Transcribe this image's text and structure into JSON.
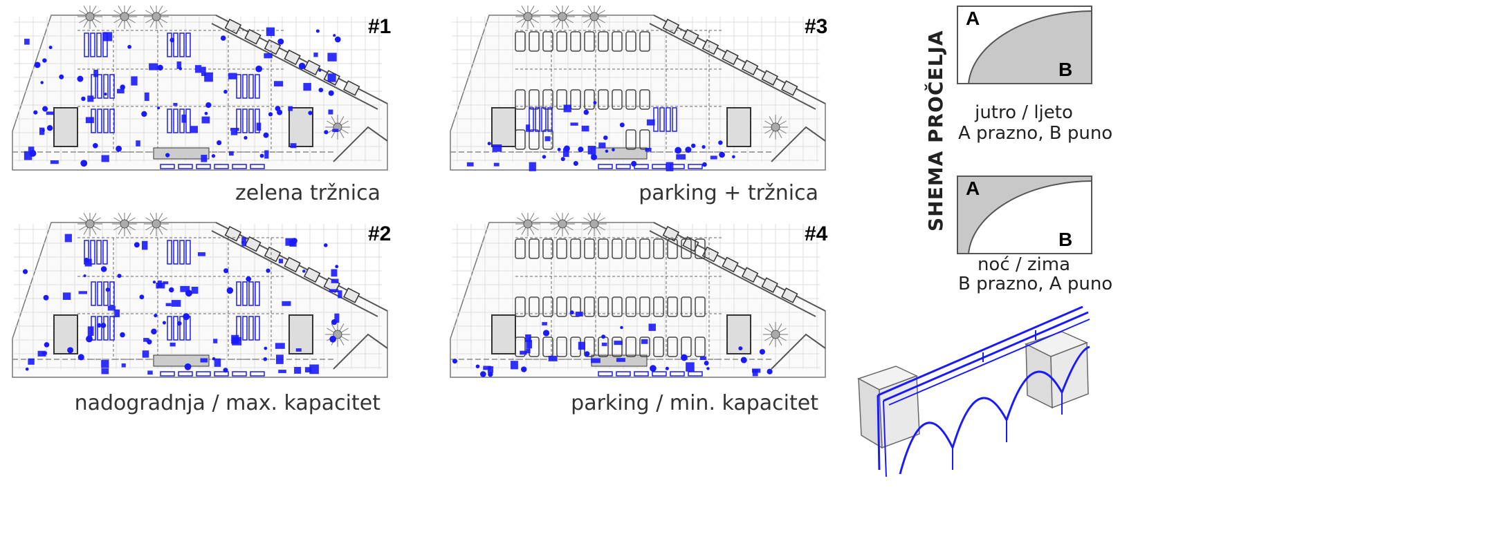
{
  "plans": [
    {
      "badge": "#1",
      "caption": "zelena tržnica"
    },
    {
      "badge": "#3",
      "caption": "parking + tržnica"
    },
    {
      "badge": "#2",
      "caption": "nadogradnja / max. kapacitet"
    },
    {
      "badge": "#4",
      "caption": "parking / min. kapacitet"
    }
  ],
  "scheme": {
    "title": "SHEMA PROČELJA",
    "a": "A",
    "b": "B",
    "state1_line1": "jutro / ljeto",
    "state1_line2": "A prazno, B puno",
    "state2_line1": "noć / zima",
    "state2_line2": "B prazno, A puno"
  },
  "colors": {
    "accent": "#1a1aff",
    "fill": "#c8c8c8",
    "line": "#555555"
  }
}
